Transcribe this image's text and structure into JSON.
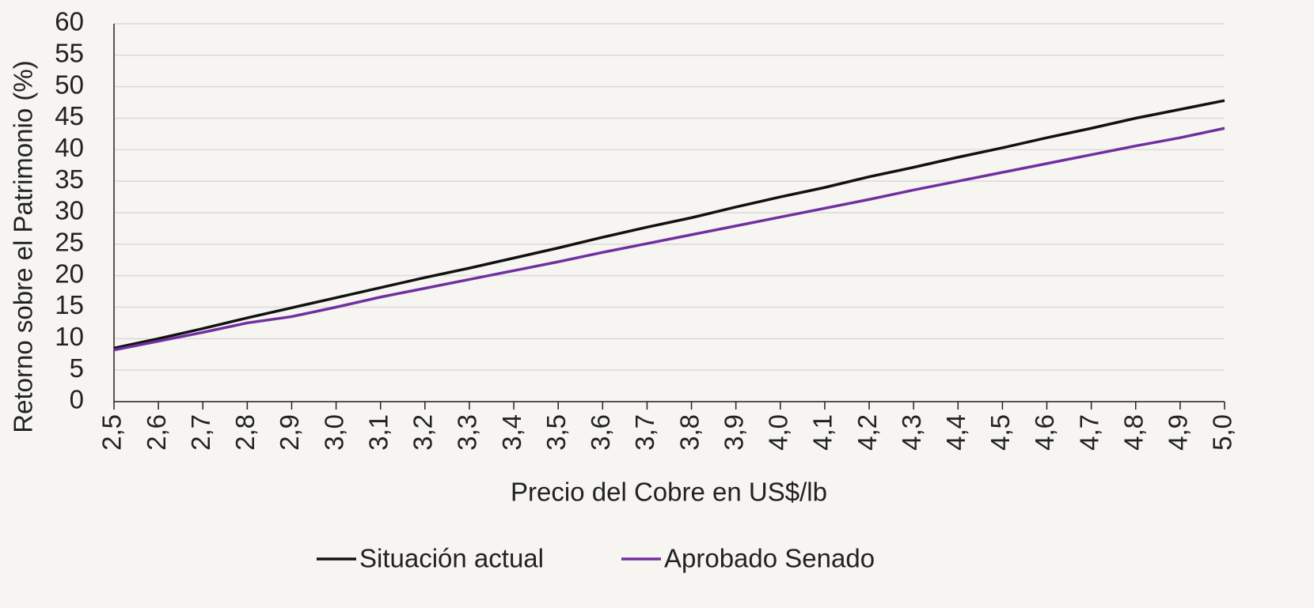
{
  "chart_data": {
    "type": "line",
    "x_label": "Precio del Cobre en US$/lb",
    "y_label": "Retorno sobre el Patrimonio (%)",
    "categories": [
      "2,5",
      "2,6",
      "2,7",
      "2,8",
      "2,9",
      "3,0",
      "3,1",
      "3,2",
      "3,3",
      "3,4",
      "3,5",
      "3,6",
      "3,7",
      "3,8",
      "3,9",
      "4,0",
      "4,1",
      "4,2",
      "4,3",
      "4,4",
      "4,5",
      "4,6",
      "4,7",
      "4,8",
      "4,9",
      "5,0"
    ],
    "series": [
      {
        "name": "Situación actual",
        "color": "#111111",
        "values": [
          8.5,
          10.0,
          11.6,
          13.3,
          14.9,
          16.5,
          18.1,
          19.7,
          21.2,
          22.8,
          24.4,
          26.1,
          27.7,
          29.2,
          30.9,
          32.5,
          34.0,
          35.7,
          37.2,
          38.8,
          40.3,
          41.9,
          43.4,
          45.0,
          46.4,
          47.8
        ]
      },
      {
        "name": "Aprobado Senado",
        "color": "#7030a0",
        "values": [
          8.2,
          9.6,
          11.0,
          12.5,
          13.5,
          15.0,
          16.6,
          18.0,
          19.4,
          20.8,
          22.2,
          23.7,
          25.1,
          26.5,
          27.9,
          29.3,
          30.7,
          32.1,
          33.6,
          35.0,
          36.4,
          37.8,
          39.2,
          40.6,
          41.9,
          43.4
        ]
      }
    ],
    "ylim": [
      0,
      60
    ],
    "yticks": [
      0,
      5,
      10,
      15,
      20,
      25,
      30,
      35,
      40,
      45,
      50,
      55,
      60
    ],
    "grid": true,
    "legend": "bottom"
  }
}
